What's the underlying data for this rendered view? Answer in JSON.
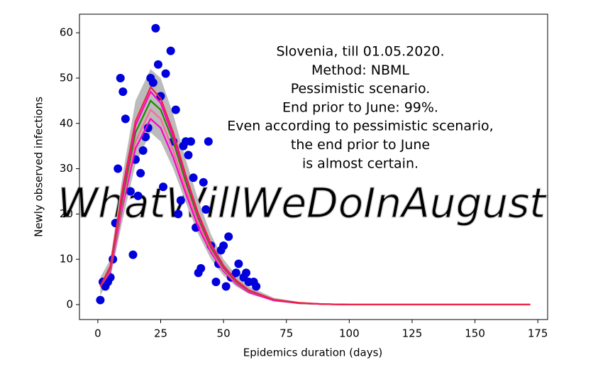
{
  "chart_data": {
    "type": "scatter",
    "annotation": [
      "Slovenia, till 01.05.2020.",
      "Method: NBML",
      "Pessimistic scenario.",
      "End prior to June: 99%.",
      "Even according to pessimistic scenario,",
      "the end prior to June",
      "is almost certain."
    ],
    "watermark": "WhatWillWeDoInAugust",
    "x_label": "Epidemics duration (days)",
    "y_label": "Newly observed infections",
    "xlim": [
      -7.3,
      178.9
    ],
    "ylim": [
      -3.3,
      64.1
    ],
    "xticks": [
      0,
      25,
      50,
      75,
      100,
      125,
      150,
      175
    ],
    "yticks": [
      0,
      10,
      20,
      30,
      40,
      50,
      60
    ],
    "points": {
      "color": "#0000dd",
      "x": [
        1,
        2,
        3,
        4,
        5,
        6,
        7,
        8,
        9,
        10,
        11,
        13,
        14,
        15,
        16,
        17,
        18,
        19,
        20,
        21,
        22,
        23,
        24,
        25,
        26,
        27,
        29,
        30,
        31,
        32,
        33,
        34,
        35,
        36,
        37,
        38,
        39,
        40,
        41,
        42,
        43,
        44,
        45,
        47,
        48,
        49,
        50,
        51,
        52,
        53,
        55,
        56,
        58,
        59,
        60,
        62,
        63
      ],
      "values": [
        1,
        5,
        4,
        5,
        6,
        10,
        18,
        30,
        50,
        47,
        41,
        25,
        11,
        32,
        24,
        29,
        34,
        37,
        39,
        50,
        49,
        61,
        53,
        46,
        26,
        51,
        56,
        36,
        43,
        20,
        23,
        35,
        36,
        33,
        36,
        28,
        17,
        7,
        8,
        27,
        21,
        36,
        13,
        5,
        9,
        12,
        13,
        4,
        15,
        6,
        7,
        9,
        6,
        7,
        5,
        5,
        4
      ]
    },
    "band": {
      "color": "#bbbbbb",
      "x": [
        1,
        5,
        10,
        15,
        21,
        25,
        30,
        35,
        40,
        45,
        50,
        55,
        60,
        70,
        80,
        90,
        100,
        120,
        140,
        172
      ],
      "upper": [
        6,
        10,
        29,
        45,
        52,
        50,
        42,
        32,
        23,
        15.5,
        10,
        6.5,
        4,
        1.5,
        0.6,
        0.2,
        0,
        0,
        0,
        0
      ],
      "lower": [
        2,
        6,
        19,
        31,
        38,
        36,
        30,
        22.5,
        15.5,
        10,
        6.4,
        4,
        2.4,
        0.8,
        0.2,
        0.1,
        0,
        0,
        0,
        0
      ]
    },
    "series": [
      {
        "color": "#ff00cc",
        "x": [
          1,
          5,
          10,
          15,
          21,
          25,
          30,
          35,
          40,
          45,
          50,
          55,
          60,
          70,
          80,
          90,
          100,
          120,
          140,
          172
        ],
        "values": [
          4,
          7.2,
          22,
          34.5,
          41,
          39,
          32.5,
          24.5,
          17,
          11.5,
          7.4,
          4.6,
          2.7,
          0.9,
          0.3,
          0.1,
          0,
          0,
          0,
          0
        ]
      },
      {
        "color": "#ff6699",
        "x": [
          1,
          5,
          10,
          15,
          21,
          25,
          30,
          35,
          40,
          45,
          50,
          55,
          60,
          70,
          80,
          90,
          100,
          120,
          140,
          172
        ],
        "values": [
          4,
          7.6,
          23,
          36,
          43,
          41,
          34,
          25.5,
          18,
          12,
          7.7,
          4.8,
          2.9,
          1,
          0.3,
          0.1,
          0,
          0,
          0,
          0
        ]
      },
      {
        "color": "#228800",
        "x": [
          1,
          5,
          10,
          15,
          21,
          25,
          30,
          35,
          40,
          45,
          50,
          55,
          60,
          70,
          80,
          90,
          100,
          120,
          140,
          172
        ],
        "values": [
          4,
          8,
          24,
          38,
          45,
          43,
          36,
          27,
          19,
          12.6,
          8.1,
          5,
          3,
          1,
          0.3,
          0.1,
          0,
          0,
          0,
          0
        ]
      },
      {
        "color": "#ff00cc",
        "x": [
          1,
          5,
          10,
          15,
          21,
          25,
          30,
          35,
          40,
          45,
          50,
          55,
          60,
          70,
          80,
          90,
          100,
          120,
          140,
          172
        ],
        "values": [
          4,
          8.3,
          25,
          39.5,
          47,
          44.5,
          37,
          28,
          19.6,
          13,
          8.4,
          5.2,
          3.1,
          1,
          0.35,
          0.1,
          0,
          0,
          0,
          0
        ]
      },
      {
        "color": "#ee2244",
        "x": [
          1,
          5,
          10,
          15,
          21,
          25,
          30,
          35,
          40,
          45,
          50,
          55,
          60,
          70,
          80,
          90,
          100,
          120,
          140,
          172
        ],
        "values": [
          4,
          8.5,
          26,
          40.5,
          48,
          45.5,
          38,
          28.5,
          20,
          13.4,
          8.6,
          5.4,
          3.2,
          1.1,
          0.4,
          0.1,
          0,
          0,
          0,
          0
        ]
      }
    ]
  }
}
